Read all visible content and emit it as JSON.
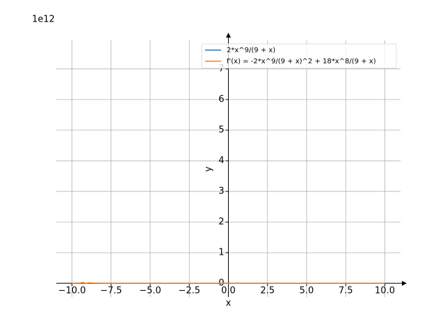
{
  "chart_data": {
    "type": "line",
    "offset_label": "1e12",
    "xlabel": "x",
    "ylabel": "y",
    "x": [
      -10,
      -9.5,
      -9.3,
      -9.1,
      -8.9,
      -8.7,
      -8,
      -5,
      0,
      5,
      10
    ],
    "series": [
      {
        "name": "2*x^9/(9 + x)",
        "color": "#1f77b4",
        "values": [
          0,
          0,
          0,
          0,
          0,
          0,
          0,
          0,
          0,
          0,
          0
        ]
      },
      {
        "name": "f'(x) = -2*x^9/(9 + x)^2 + 18*x^8/(9 + x)",
        "color": "#ff7f0e",
        "values": [
          0,
          0.01,
          0.03,
          0,
          0.02,
          0.01,
          0,
          0,
          0,
          0,
          0
        ]
      }
    ],
    "xlim": [
      -11,
      11
    ],
    "ylim": [
      -0.45,
      7.93
    ],
    "xticks": [
      {
        "value": -10,
        "label": "−10.0"
      },
      {
        "value": -7.5,
        "label": "−7.5"
      },
      {
        "value": -5,
        "label": "−5.0"
      },
      {
        "value": -2.5,
        "label": "−2.5"
      },
      {
        "value": 0,
        "label": "0.0"
      },
      2.5,
      {
        "value": 5,
        "label": "5.0"
      },
      7.5,
      {
        "value": 10,
        "label": "10.0"
      }
    ],
    "yticks": [
      0,
      1,
      2,
      3,
      4,
      5,
      6,
      7
    ],
    "grid": true,
    "legend": "upper right"
  }
}
